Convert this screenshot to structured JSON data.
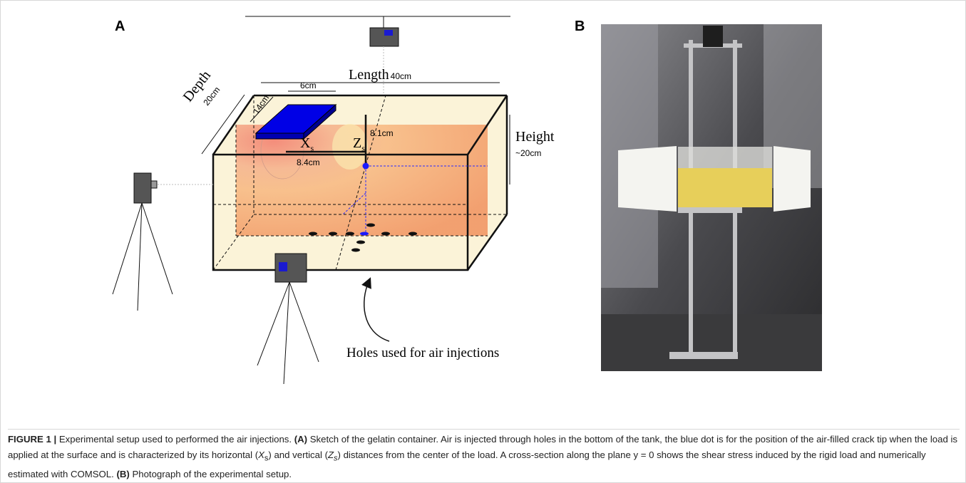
{
  "panel_a": {
    "label": "A",
    "length": "Length",
    "length_value": "40cm",
    "depth": "Depth",
    "depth_value": "20cm",
    "load_width": "6cm",
    "load_length": "14cm",
    "xs_symbol": "X",
    "xs_subscript": "s",
    "zs_symbol": "Z",
    "zs_subscript": "s",
    "zs_value": "8.1cm",
    "xs_value": "8.4cm",
    "height": "Height",
    "height_value": "~20cm",
    "holes_note": "Holes used for air injections"
  },
  "panel_b": {
    "label": "B"
  },
  "caption": {
    "label": "FIGURE 1 |",
    "intro": "Experimental setup used to performed the air injections.",
    "a_label": "(A)",
    "a_text_1": "Sketch of the gelatin container. Air is injected through holes in the bottom of the tank, the blue dot is for the position of the air-filled crack tip when the load is applied at the surface and is characterized by its horizontal (",
    "xs_symbol": "X",
    "xs_subscript": "s",
    "a_text_2": ") and vertical (",
    "zs_symbol": "Z",
    "zs_subscript": "s",
    "a_text_3": ") distances from the center of the load. A cross-section along the plane y = 0 shows the shear stress induced by the rigid load and numerically estimated with COMSOL.",
    "b_label": "(B)",
    "b_text": "Photograph of the experimental setup."
  }
}
